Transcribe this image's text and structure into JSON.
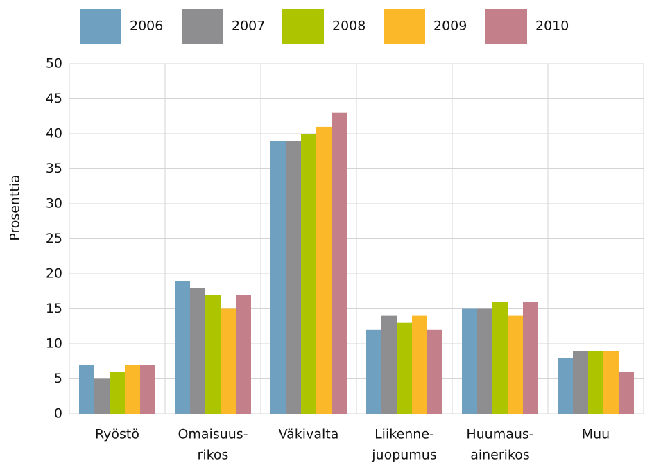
{
  "chart_data": {
    "type": "bar",
    "y_label": "Prosenttia",
    "categories": [
      [
        "Ryöstö"
      ],
      [
        "Omaisuus-",
        "rikos"
      ],
      [
        "Väkivalta"
      ],
      [
        "Liikenne-",
        "juopumus"
      ],
      [
        "Huumaus-",
        "ainerikos"
      ],
      [
        "Muu"
      ]
    ],
    "series": [
      {
        "name": "2006",
        "color": "#6fa0bf",
        "values": [
          7,
          19,
          39,
          12,
          15,
          8
        ]
      },
      {
        "name": "2007",
        "color": "#8e8e90",
        "values": [
          5,
          18,
          39,
          14,
          15,
          9
        ]
      },
      {
        "name": "2008",
        "color": "#adc400",
        "values": [
          6,
          17,
          40,
          13,
          16,
          9
        ]
      },
      {
        "name": "2009",
        "color": "#fbb829",
        "values": [
          7,
          15,
          41,
          14,
          14,
          9
        ]
      },
      {
        "name": "2010",
        "color": "#c4808a",
        "values": [
          7,
          17,
          43,
          12,
          16,
          6
        ]
      }
    ],
    "ylim": [
      0,
      50
    ],
    "yticks": [
      0,
      5,
      10,
      15,
      20,
      25,
      30,
      35,
      40,
      45,
      50
    ],
    "grid": true
  }
}
